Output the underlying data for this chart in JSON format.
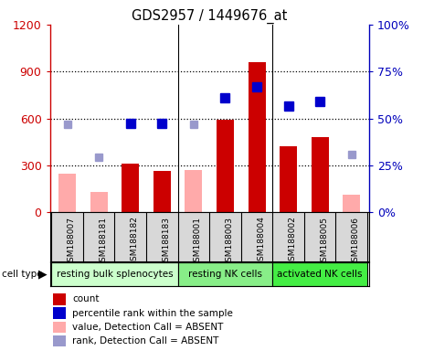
{
  "title": "GDS2957 / 1449676_at",
  "samples": [
    "GSM188007",
    "GSM188181",
    "GSM188182",
    "GSM188183",
    "GSM188001",
    "GSM188003",
    "GSM188004",
    "GSM188002",
    "GSM188005",
    "GSM188006"
  ],
  "cell_types": [
    {
      "label": "resting bulk splenocytes",
      "start": 0,
      "end": 4
    },
    {
      "label": "resting NK cells",
      "start": 4,
      "end": 7
    },
    {
      "label": "activated NK cells",
      "start": 7,
      "end": 10
    }
  ],
  "count_values": [
    null,
    null,
    310,
    265,
    null,
    590,
    960,
    420,
    480,
    null
  ],
  "count_absent": [
    250,
    130,
    null,
    null,
    270,
    null,
    null,
    null,
    null,
    110
  ],
  "percentile_left": [
    null,
    null,
    570,
    570,
    null,
    730,
    800,
    680,
    710,
    null
  ],
  "percentile_absent_left": [
    560,
    350,
    null,
    null,
    560,
    null,
    null,
    null,
    null,
    370
  ],
  "ylim_left": [
    0,
    1200
  ],
  "yticks_left": [
    0,
    300,
    600,
    900,
    1200
  ],
  "yticklabels_left": [
    "0",
    "300",
    "600",
    "900",
    "1200"
  ],
  "right_ticks": [
    0,
    25,
    50,
    75,
    100
  ],
  "right_labels": [
    "0%",
    "25%",
    "50%",
    "75%",
    "100%"
  ],
  "left_axis_color": "#cc0000",
  "right_axis_color": "#0000bb",
  "bar_color_present": "#cc0000",
  "bar_color_absent": "#ffaaaa",
  "dot_color_present": "#0000cc",
  "dot_color_absent": "#9999cc",
  "bg_chart": "#ffffff",
  "bg_sample": "#d8d8d8",
  "bg_group1": "#ccffcc",
  "bg_group2": "#88ee88",
  "bg_group3": "#44ee44",
  "gridline_vals": [
    300,
    600,
    900
  ],
  "group_dividers": [
    3.5,
    6.5
  ],
  "legend_items": [
    {
      "color": "#cc0000",
      "label": "count"
    },
    {
      "color": "#0000cc",
      "label": "percentile rank within the sample"
    },
    {
      "color": "#ffaaaa",
      "label": "value, Detection Call = ABSENT"
    },
    {
      "color": "#9999cc",
      "label": "rank, Detection Call = ABSENT"
    }
  ]
}
